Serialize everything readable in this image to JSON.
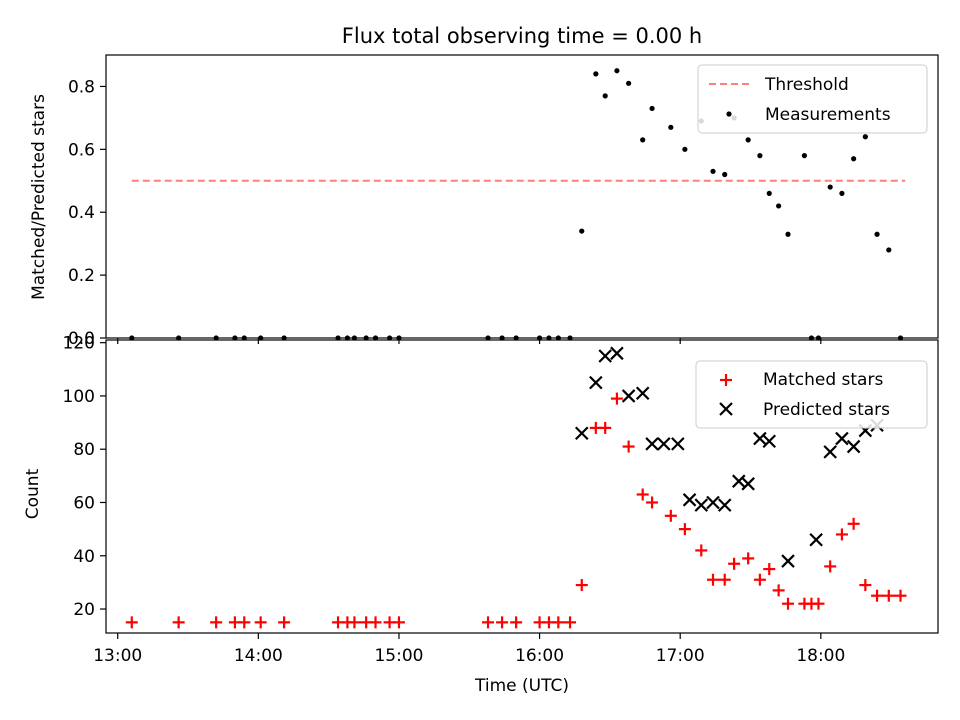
{
  "figure": {
    "title": "Flux total observing time = 0.00 h"
  },
  "colors": {
    "threshold": "#ff7f7f",
    "measurements": "#000000",
    "matched": "#ff0000",
    "predicted": "#000000"
  },
  "chart_data": [
    {
      "type": "scatter",
      "title": "Flux total observing time = 0.00 h",
      "xlabel": "",
      "ylabel": "Matched/Predicted stars",
      "xlim": [
        "12:55",
        "18:50"
      ],
      "ylim": [
        0,
        0.9
      ],
      "xticks": [
        "13:00",
        "14:00",
        "15:00",
        "16:00",
        "17:00",
        "18:00"
      ],
      "yticks": [
        "0.0",
        "0.2",
        "0.4",
        "0.6",
        "0.8"
      ],
      "legend": {
        "position": "top-right",
        "entries": [
          "Threshold",
          "Measurements"
        ]
      },
      "threshold": {
        "name": "Threshold",
        "value": 0.5,
        "x": [
          "13:06",
          "18:36"
        ],
        "style": "dashed"
      },
      "series": [
        {
          "name": "Measurements",
          "marker": "dot",
          "x": [
            "13:06",
            "13:26",
            "13:42",
            "13:50",
            "13:54",
            "14:01",
            "14:11",
            "14:34",
            "14:38",
            "14:41",
            "14:46",
            "14:50",
            "14:56",
            "15:00",
            "15:38",
            "15:44",
            "15:50",
            "16:00",
            "16:04",
            "16:08",
            "16:13",
            "16:18",
            "16:24",
            "16:28",
            "16:33",
            "16:38",
            "16:44",
            "16:48",
            "16:56",
            "17:02",
            "17:09",
            "17:14",
            "17:19",
            "17:23",
            "17:29",
            "17:34",
            "17:38",
            "17:42",
            "17:46",
            "17:53",
            "17:56",
            "17:59",
            "18:04",
            "18:09",
            "18:14",
            "18:19",
            "18:24",
            "18:29",
            "18:34"
          ],
          "y": [
            0,
            0,
            0,
            0,
            0,
            0,
            0,
            0,
            0,
            0,
            0,
            0,
            0,
            0,
            0,
            0,
            0,
            0,
            0,
            0,
            0,
            0.34,
            0.84,
            0.77,
            0.85,
            0.81,
            0.63,
            0.73,
            0.67,
            0.6,
            0.69,
            0.53,
            0.52,
            0.7,
            0.63,
            0.58,
            0.46,
            0.42,
            0.33,
            0.58,
            0,
            0,
            0.48,
            0.46,
            0.57,
            0.64,
            0.33,
            0.28,
            0
          ]
        }
      ]
    },
    {
      "type": "scatter",
      "title": "",
      "xlabel": "Time (UTC)",
      "ylabel": "Count",
      "xlim": [
        "12:55",
        "18:50"
      ],
      "ylim": [
        11,
        121
      ],
      "xticks": [
        "13:00",
        "14:00",
        "15:00",
        "16:00",
        "17:00",
        "18:00"
      ],
      "yticks": [
        "20",
        "40",
        "60",
        "80",
        "100",
        "120"
      ],
      "legend": {
        "position": "top-right",
        "entries": [
          "Matched stars",
          "Predicted stars"
        ]
      },
      "series": [
        {
          "name": "Matched stars",
          "marker": "plus",
          "x": [
            "13:06",
            "13:26",
            "13:42",
            "13:50",
            "13:54",
            "14:01",
            "14:11",
            "14:34",
            "14:38",
            "14:41",
            "14:46",
            "14:50",
            "14:56",
            "15:00",
            "15:38",
            "15:44",
            "15:50",
            "16:00",
            "16:04",
            "16:08",
            "16:13",
            "16:18",
            "16:24",
            "16:28",
            "16:33",
            "16:38",
            "16:44",
            "16:48",
            "16:56",
            "17:02",
            "17:09",
            "17:14",
            "17:19",
            "17:23",
            "17:29",
            "17:34",
            "17:38",
            "17:42",
            "17:46",
            "17:53",
            "17:56",
            "17:59",
            "18:04",
            "18:09",
            "18:14",
            "18:19",
            "18:24",
            "18:29",
            "18:34"
          ],
          "y": [
            15,
            15,
            15,
            15,
            15,
            15,
            15,
            15,
            15,
            15,
            15,
            15,
            15,
            15,
            15,
            15,
            15,
            15,
            15,
            15,
            15,
            29,
            88,
            88,
            99,
            81,
            63,
            60,
            55,
            50,
            42,
            31,
            31,
            37,
            39,
            31,
            35,
            27,
            22,
            22,
            22,
            22,
            36,
            48,
            52,
            29,
            25,
            25,
            25
          ]
        },
        {
          "name": "Predicted stars",
          "marker": "x",
          "x": [
            "16:18",
            "16:24",
            "16:28",
            "16:33",
            "16:38",
            "16:44",
            "16:48",
            "16:53",
            "16:59",
            "17:04",
            "17:09",
            "17:14",
            "17:19",
            "17:25",
            "17:29",
            "17:34",
            "17:38",
            "17:46",
            "17:58",
            "18:04",
            "18:09",
            "18:14",
            "18:19",
            "18:24"
          ],
          "y": [
            86,
            105,
            115,
            116,
            100,
            101,
            82,
            82,
            82,
            61,
            59,
            60,
            59,
            68,
            67,
            84,
            83,
            38,
            46,
            79,
            84,
            81,
            87,
            89
          ]
        }
      ]
    }
  ]
}
